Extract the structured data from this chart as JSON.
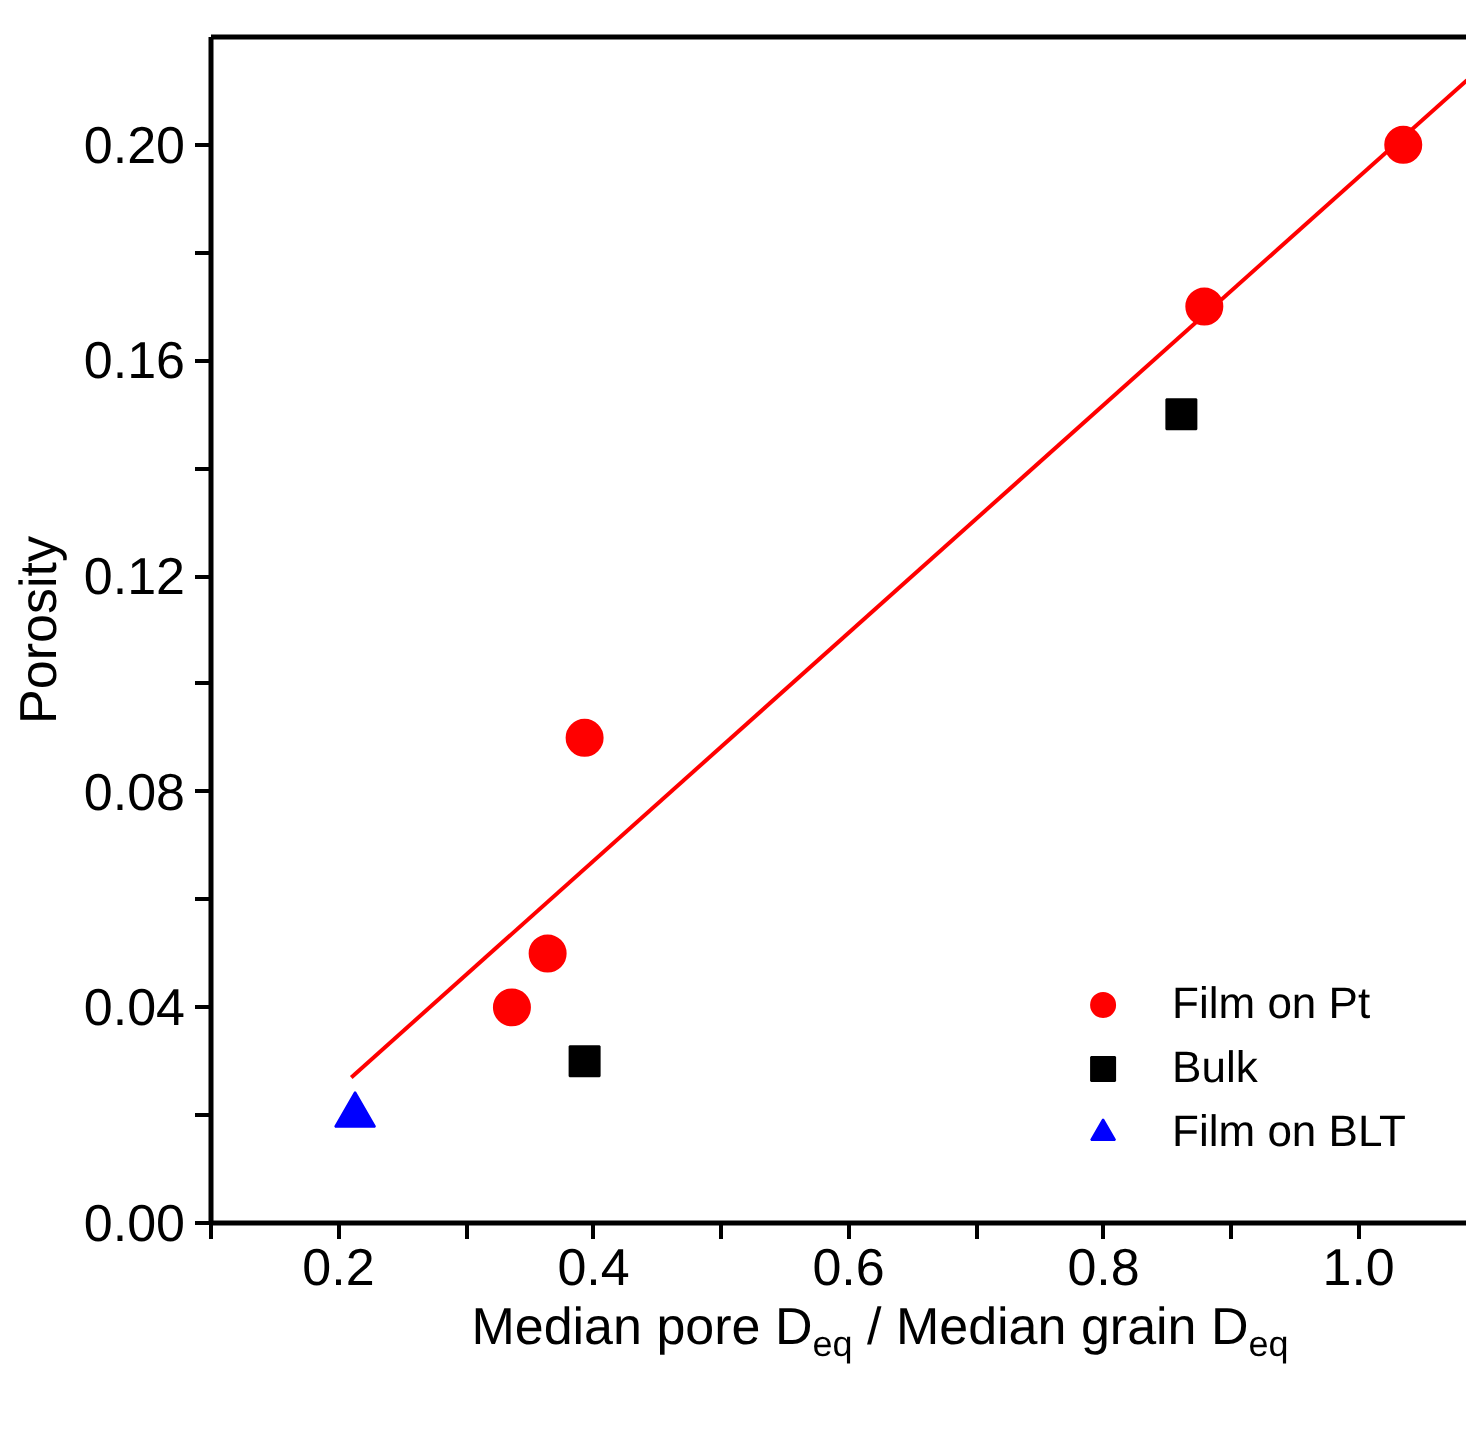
{
  "chart_data": {
    "type": "scatter",
    "xlabel": "Median pore D$_{eq}$ / Median grain D$_{eq}$",
    "ylabel": "Porosity",
    "xlim": [
      0.1,
      1.085
    ],
    "ylim": [
      0,
      0.22
    ],
    "xticks": [
      {
        "value": 0.1,
        "label": null
      },
      0.2,
      {
        "value": 0.3,
        "label": null
      },
      0.4,
      {
        "value": 0.5,
        "label": null
      },
      0.6,
      {
        "value": 0.7,
        "label": null
      },
      0.8,
      {
        "value": 0.9,
        "label": null
      },
      {
        "value": 1.0,
        "label": "1.0"
      }
    ],
    "yticks": [
      {
        "value": 0,
        "label": "0.00"
      },
      {
        "value": 0.02,
        "label": null
      },
      0.04,
      {
        "value": 0.06,
        "label": null
      },
      0.08,
      {
        "value": 0.1,
        "label": null
      },
      0.12,
      {
        "value": 0.14,
        "label": null
      },
      0.16,
      {
        "value": 0.18,
        "label": null
      },
      {
        "value": 0.2,
        "label": "0.20"
      }
    ],
    "grid": false,
    "legend": "bottom right",
    "series": [
      {
        "name": "Film on Pt",
        "color": "#ff0000",
        "marker": "circle",
        "x": [
          0.336,
          0.364,
          0.393,
          0.879,
          1.035
        ],
        "values": [
          0.04,
          0.05,
          0.09,
          0.17,
          0.2
        ]
      },
      {
        "name": "Bulk",
        "color": "#000000",
        "marker": "square",
        "x": [
          0.393,
          0.861
        ],
        "values": [
          0.03,
          0.15
        ]
      },
      {
        "name": "Film on BLT",
        "color": "#0000ff",
        "marker": "triangle",
        "x": [
          0.213
        ],
        "values": [
          0.02
        ]
      },
      {
        "type": "line",
        "color": "#ff0000",
        "x": [
          0.21,
          1.085
        ],
        "values": [
          0.027,
          0.212
        ]
      }
    ]
  }
}
